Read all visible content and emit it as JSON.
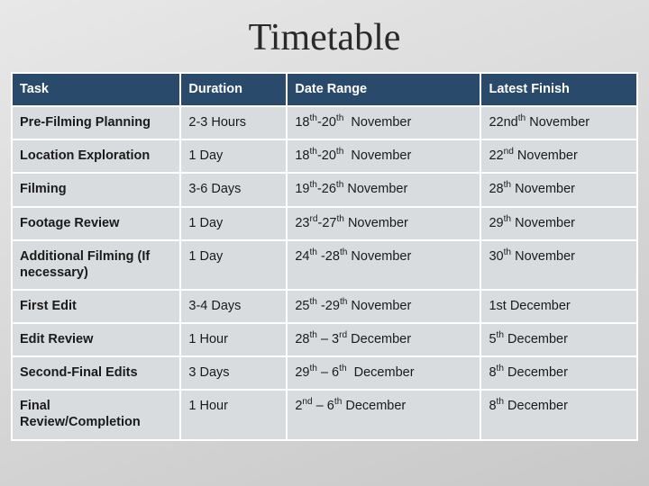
{
  "title": "Timetable",
  "table": {
    "header_bg": "#294a6b",
    "header_fg": "#ffffff",
    "cell_bg": "#d9dcdf",
    "border_color": "#ffffff",
    "font_family": "Arial",
    "header_fontsize": 14.5,
    "cell_fontsize": 14.5,
    "title_fontsize": 42,
    "column_widths_pct": [
      27,
      17,
      31,
      25
    ],
    "columns": [
      "Task",
      "Duration",
      "Date Range",
      "Latest Finish"
    ],
    "rows": [
      {
        "task": "Pre-Filming Planning",
        "duration": "2-3 Hours",
        "date_range_html": "18<sup>th</sup>-20<sup>th</sup>&nbsp; November",
        "latest_finish_html": "22nd<sup>th</sup> November"
      },
      {
        "task": "Location Exploration",
        "duration": "1 Day",
        "date_range_html": "18<sup>th</sup>-20<sup>th</sup>&nbsp; November",
        "latest_finish_html": "22<sup>nd</sup> November"
      },
      {
        "task": "Filming",
        "duration": "3-6 Days",
        "date_range_html": "19<sup>th</sup>-26<sup>th</sup> November",
        "latest_finish_html": "28<sup>th</sup> November"
      },
      {
        "task": "Footage Review",
        "duration": "1 Day",
        "date_range_html": "23<sup>rd</sup>-27<sup>th</sup> November",
        "latest_finish_html": "29<sup>th</sup> November"
      },
      {
        "task": "Additional Filming (If necessary)",
        "duration": "1 Day",
        "date_range_html": "24<sup>th</sup> -28<sup>th</sup> November",
        "latest_finish_html": "30<sup>th</sup> November"
      },
      {
        "task": "First Edit",
        "duration": "3-4 Days",
        "date_range_html": "25<sup>th</sup> -29<sup>th</sup> November",
        "latest_finish_html": "1st December"
      },
      {
        "task": "Edit Review",
        "duration": "1 Hour",
        "date_range_html": "28<sup>th</sup> &ndash; 3<sup>rd</sup> December",
        "latest_finish_html": "5<sup>th</sup> December"
      },
      {
        "task": "Second-Final Edits",
        "duration": "3 Days",
        "date_range_html": "29<sup>th</sup> &ndash; 6<sup>th</sup>&nbsp; December",
        "latest_finish_html": "8<sup>th</sup> December"
      },
      {
        "task": "Final Review/Completion",
        "duration": "1 Hour",
        "date_range_html": "2<sup>nd</sup> &ndash; 6<sup>th</sup> December",
        "latest_finish_html": "8<sup>th</sup> December"
      }
    ]
  }
}
